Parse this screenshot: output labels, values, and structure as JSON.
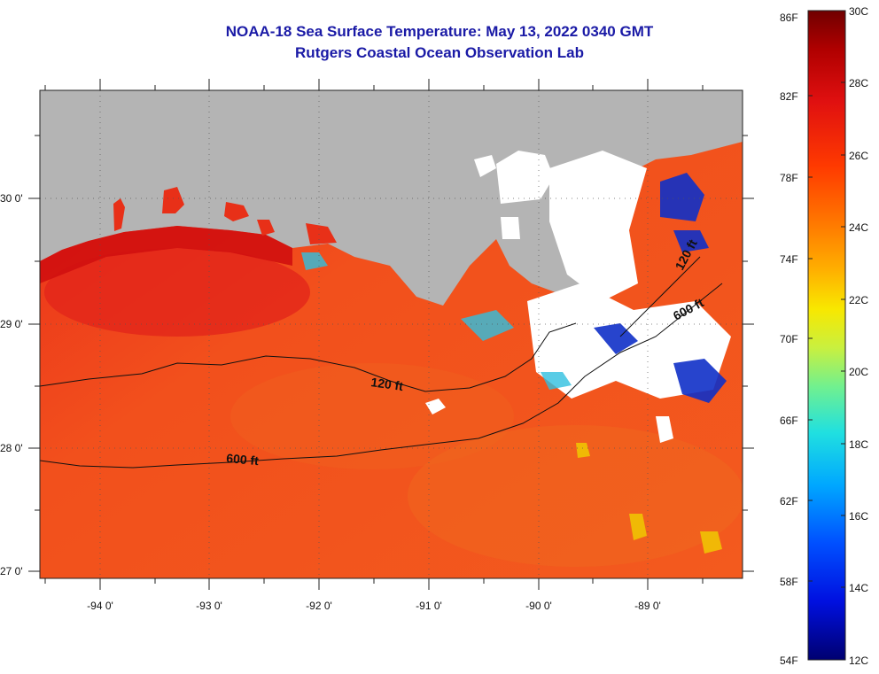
{
  "header": {
    "title": "NOAA-18 Sea Surface Temperature:  May 13, 2022 0340 GMT",
    "subtitle": "Rutgers Coastal Ocean Observation Lab"
  },
  "map": {
    "x_ticks": [
      "-94 0'",
      "-93 0'",
      "-92 0'",
      "-91 0'",
      "-90 0'",
      "-89 0'"
    ],
    "y_ticks": [
      "30 0'",
      "29 0'",
      "28 0'",
      "27 0'"
    ],
    "contour_labels": [
      {
        "id": "c120_main",
        "text": "120 ft"
      },
      {
        "id": "c600_main",
        "text": "600 ft"
      },
      {
        "id": "c120_ne",
        "text": "120 ft"
      },
      {
        "id": "c600_ne",
        "text": "600 ft"
      }
    ],
    "colors": {
      "land": "#b4b4b4",
      "cloud": "#ffffff",
      "sea_warm": "#f0401a",
      "sea_hot": "#e02010"
    }
  },
  "colorbar": {
    "fahrenheit_labels": [
      "86F",
      "82F",
      "78F",
      "74F",
      "70F",
      "66F",
      "62F",
      "58F",
      "54F"
    ],
    "celsius_labels": [
      "30C",
      "28C",
      "26C",
      "24C",
      "22C",
      "20C",
      "18C",
      "16C",
      "14C",
      "12C"
    ],
    "gradient": [
      "#800000",
      "#c80000",
      "#ff2000",
      "#ff6000",
      "#ffa000",
      "#ffe000",
      "#c0ff40",
      "#40ffc0",
      "#00e0ff",
      "#0080ff",
      "#0020ff",
      "#000090"
    ]
  }
}
